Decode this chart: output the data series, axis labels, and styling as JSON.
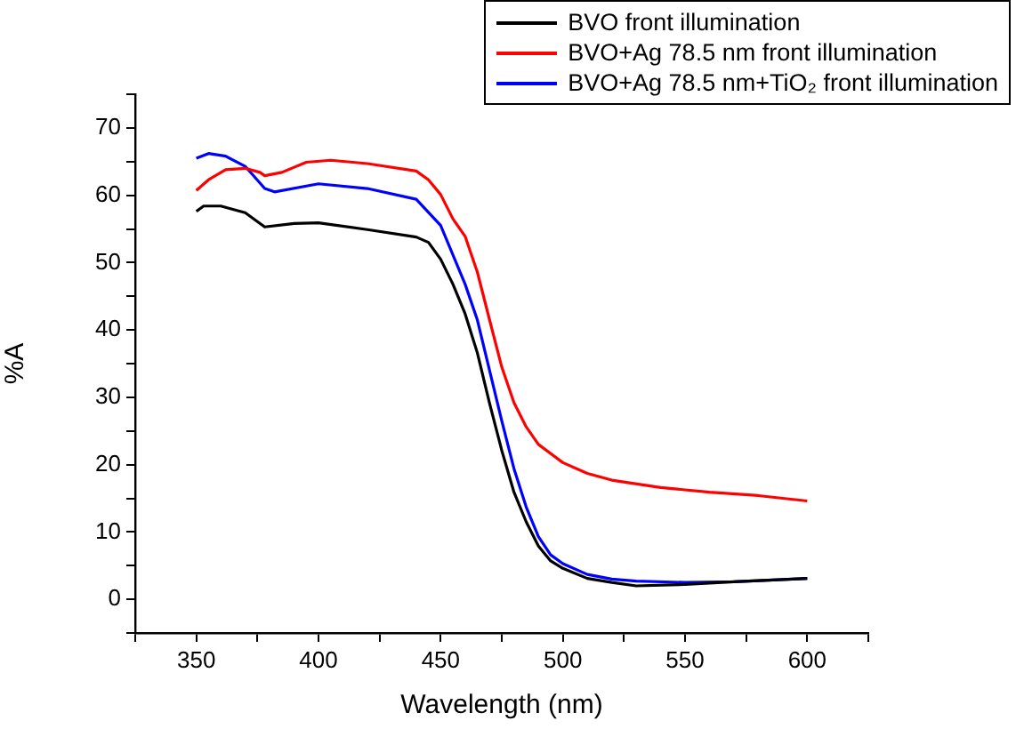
{
  "chart_data": {
    "type": "line",
    "xlabel": "Wavelength (nm)",
    "ylabel": "%A",
    "xlim": [
      325,
      625
    ],
    "ylim": [
      -5,
      75
    ],
    "xticks": [
      {
        "value": 325,
        "label": null
      },
      350,
      {
        "value": 375,
        "label": null
      },
      400,
      {
        "value": 425,
        "label": null
      },
      450,
      {
        "value": 475,
        "label": null
      },
      500,
      {
        "value": 525,
        "label": null
      },
      550,
      {
        "value": 575,
        "label": null
      },
      600,
      {
        "value": 625,
        "label": null
      }
    ],
    "yticks": [
      {
        "value": -5,
        "label": null
      },
      0,
      {
        "value": 5,
        "label": null
      },
      10,
      {
        "value": 15,
        "label": null
      },
      20,
      {
        "value": 25,
        "label": null
      },
      30,
      {
        "value": 35,
        "label": null
      },
      40,
      {
        "value": 45,
        "label": null
      },
      50,
      {
        "value": 55,
        "label": null
      },
      60,
      {
        "value": 65,
        "label": null
      },
      70,
      {
        "value": 75,
        "label": null
      }
    ],
    "grid": false,
    "legend": "top right",
    "marker": "none",
    "line_style": "solid",
    "series": [
      {
        "name": "BVO front illumination",
        "color": "#000000",
        "x": [
          350,
          353,
          360,
          370,
          378,
          390,
          400,
          420,
          440,
          445,
          450,
          455,
          460,
          465,
          470,
          475,
          480,
          485,
          490,
          495,
          500,
          510,
          520,
          530,
          550,
          570,
          600
        ],
        "values": [
          57.6,
          58.4,
          58.4,
          57.4,
          55.3,
          55.8,
          55.9,
          54.9,
          53.8,
          53.0,
          50.5,
          46.8,
          42.4,
          36.6,
          29.1,
          22.1,
          15.9,
          11.5,
          7.9,
          5.7,
          4.6,
          3.1,
          2.5,
          2.0,
          2.2,
          2.6,
          3.1
        ]
      },
      {
        "name": "BVO+Ag 78.5 nm front illumination",
        "color": "#ff0000",
        "x": [
          350,
          355,
          362,
          370,
          376,
          378,
          385,
          395,
          405,
          420,
          440,
          445,
          450,
          455,
          460,
          465,
          470,
          475,
          480,
          485,
          490,
          500,
          510,
          520,
          540,
          560,
          580,
          600
        ],
        "values": [
          60.7,
          62.3,
          63.8,
          64.0,
          63.4,
          62.9,
          63.4,
          64.9,
          65.2,
          64.7,
          63.6,
          62.3,
          60.1,
          56.5,
          53.9,
          48.6,
          41.5,
          34.5,
          29.2,
          25.6,
          23.0,
          20.3,
          18.7,
          17.7,
          16.6,
          15.9,
          15.4,
          14.6
        ]
      },
      {
        "name": "BVO+Ag 78.5 nm+TiO₂ front illumination",
        "color": "#0000ff",
        "x": [
          350,
          355,
          362,
          370,
          378,
          382,
          400,
          420,
          440,
          450,
          460,
          465,
          470,
          475,
          480,
          485,
          490,
          495,
          500,
          510,
          520,
          530,
          550,
          570,
          600
        ],
        "values": [
          65.5,
          66.2,
          65.8,
          64.3,
          61.0,
          60.5,
          61.7,
          61.0,
          59.4,
          55.5,
          46.8,
          41.5,
          34.0,
          26.5,
          19.4,
          13.7,
          9.3,
          6.6,
          5.3,
          3.7,
          3.0,
          2.7,
          2.5,
          2.6,
          3.1
        ]
      }
    ]
  }
}
